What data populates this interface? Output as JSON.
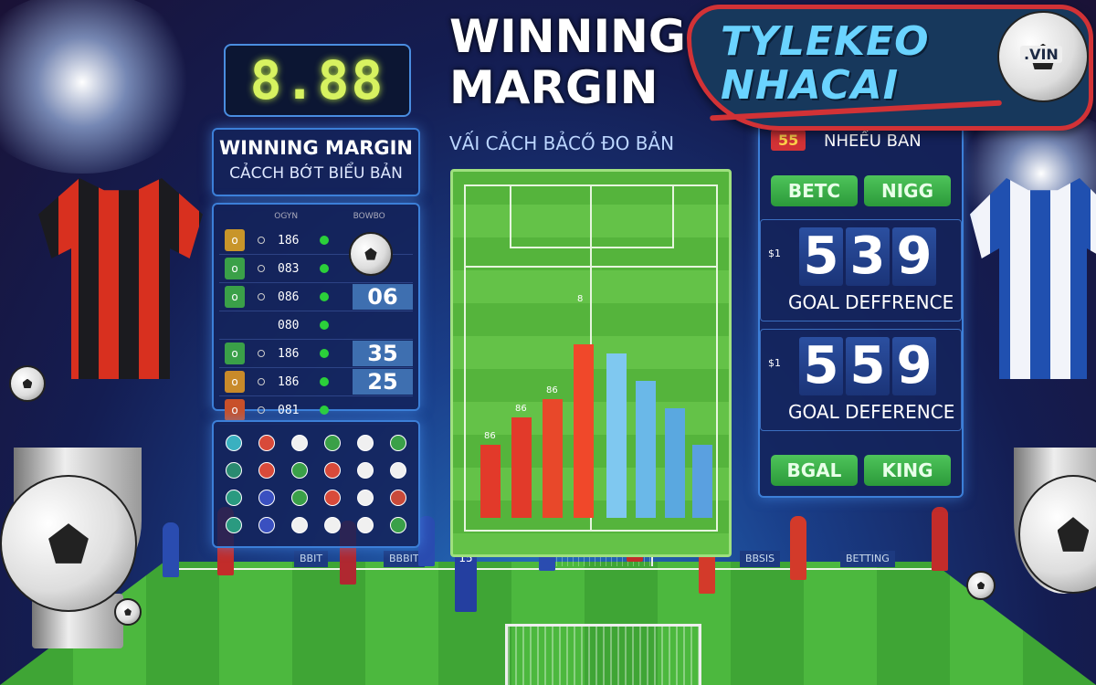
{
  "colors": {
    "accent_blue": "#3c7fd8",
    "green_button": "#3aac48",
    "logo_red": "#d23236",
    "logo_text": "#6ad3ff",
    "pitch": "#4cb83e"
  },
  "logo": {
    "line1": "TYLEKEO",
    "line2": "NHACAI",
    "domain": ".VIN"
  },
  "scoreboard_clock": "8.88",
  "main_title": {
    "line1": "WINNING",
    "line2": "MARGIN"
  },
  "subtitle": "VẤI CẢCH BẢCŐ  ĐO BẢN",
  "left_panel": {
    "title": "WINNING MARGIN",
    "subtitle": "CẢCCH BỚT BIỂU BẢN",
    "table_headers": [
      "OGYN",
      "BOWBO"
    ],
    "rows": [
      {
        "value": "186",
        "big": ""
      },
      {
        "value": "083",
        "big": ""
      },
      {
        "value": "086",
        "big": "06"
      },
      {
        "value": "080",
        "big": ""
      },
      {
        "value": "186",
        "big": "35"
      },
      {
        "value": "186",
        "big": "25"
      },
      {
        "value": "081",
        "big": ""
      }
    ]
  },
  "chart_labels": [
    "86",
    "86",
    "86",
    "8"
  ],
  "right_panel": {
    "badge": "55",
    "header": "NHEẾU BAN",
    "buttons_top": [
      "BETC",
      "NIGG"
    ],
    "score1": {
      "label": "$1",
      "digits": [
        "5",
        "3",
        "9"
      ],
      "caption": "GOAL DEFFRENCE"
    },
    "score2": {
      "label": "$1",
      "digits": [
        "5",
        "5",
        "9"
      ],
      "caption": "GOAL DEFERENCE"
    },
    "buttons_bottom": [
      "BGAL",
      "KING"
    ]
  },
  "banners": [
    "BBIT",
    "BBBIT",
    "BBSIS",
    "BETTING"
  ],
  "player_number": "15"
}
